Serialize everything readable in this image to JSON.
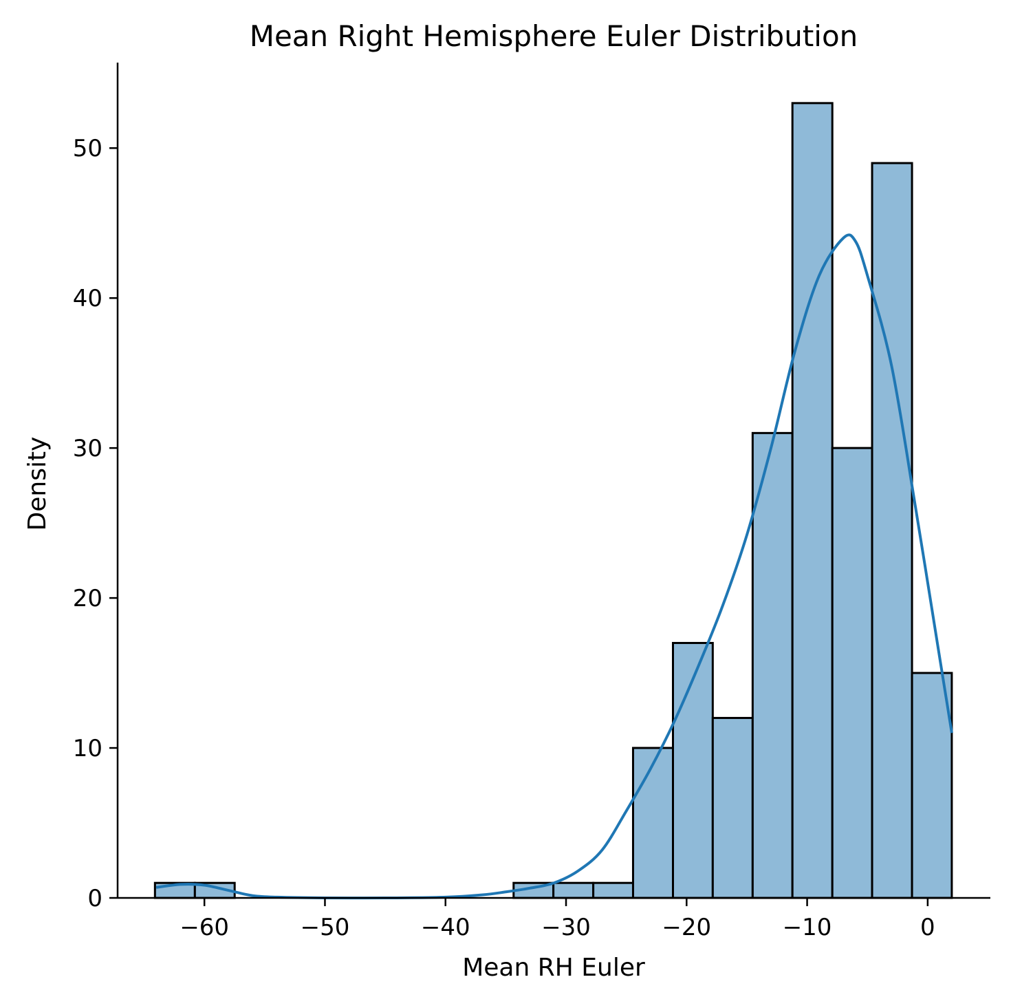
{
  "chart_data": {
    "type": "bar",
    "title": "Mean Right Hemisphere Euler Distribution",
    "xlabel": "Mean RH Euler",
    "ylabel": "Density",
    "xlim": [
      -67.2,
      5.2
    ],
    "ylim": [
      0,
      55.7
    ],
    "grid": false,
    "x_ticks": [
      -60,
      -50,
      -40,
      -30,
      -20,
      -10,
      0
    ],
    "x_tick_labels": [
      "−60",
      "−50",
      "−40",
      "−30",
      "−20",
      "−10",
      "0"
    ],
    "y_ticks": [
      0,
      10,
      20,
      30,
      40,
      50
    ],
    "y_tick_labels": [
      "0",
      "10",
      "20",
      "30",
      "40",
      "50"
    ],
    "bins": {
      "edges": [
        -64.1,
        -60.79,
        -57.49,
        -54.18,
        -50.88,
        -47.57,
        -44.27,
        -40.96,
        -37.66,
        -34.35,
        -31.05,
        -27.74,
        -24.44,
        -21.13,
        -17.83,
        -14.52,
        -11.22,
        -7.91,
        -4.61,
        -1.3,
        2.0
      ],
      "counts": [
        1,
        1,
        0,
        0,
        0,
        0,
        0,
        0,
        0,
        1,
        1,
        1,
        10,
        17,
        12,
        31,
        53,
        30,
        49,
        15
      ]
    },
    "kde": {
      "x": [
        -64.0,
        -62.0,
        -60.0,
        -58.0,
        -56.0,
        -54.0,
        -50.0,
        -45.0,
        -40.0,
        -37.0,
        -35.0,
        -33.0,
        -31.0,
        -29.0,
        -27.0,
        -25.0,
        -23.0,
        -21.0,
        -19.0,
        -17.0,
        -15.0,
        -13.0,
        -11.0,
        -9.0,
        -7.0,
        -6.0,
        -5.0,
        -3.0,
        -1.0,
        1.0,
        2.0
      ],
      "y": [
        0.7,
        0.9,
        0.85,
        0.5,
        0.15,
        0.05,
        0.0,
        0.0,
        0.05,
        0.2,
        0.4,
        0.65,
        1.0,
        1.8,
        3.2,
        5.8,
        8.6,
        11.8,
        15.5,
        19.5,
        24.2,
        30.0,
        36.5,
        41.5,
        44.0,
        43.8,
        41.5,
        35.5,
        26.0,
        16.0,
        11.0
      ]
    },
    "colors": {
      "bar_fill": "#8fbad8",
      "bar_edge": "#000000",
      "line": "#1f77b4"
    }
  }
}
